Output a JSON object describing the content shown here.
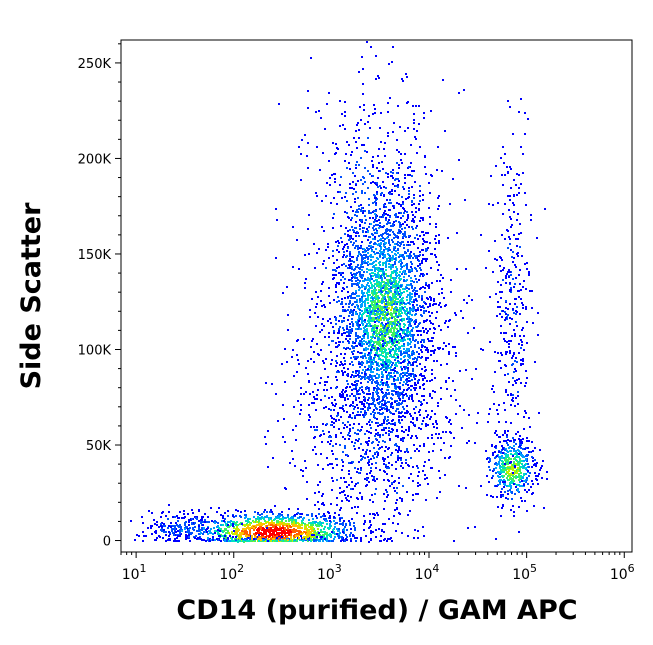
{
  "chart_data": {
    "type": "scatter",
    "style": "flow-cytometry density dot plot",
    "xlabel": "CD14 (purified) / GAM APC",
    "ylabel": "Side Scatter",
    "x_scale": "log",
    "xlim": [
      7,
      1200000
    ],
    "ylim": [
      -6000,
      262000
    ],
    "x_ticks": [
      {
        "value": 10,
        "base": "10",
        "exp": "1"
      },
      {
        "value": 100,
        "base": "10",
        "exp": "2"
      },
      {
        "value": 1000,
        "base": "10",
        "exp": "3"
      },
      {
        "value": 10000,
        "base": "10",
        "exp": "4"
      },
      {
        "value": 100000,
        "base": "10",
        "exp": "5"
      },
      {
        "value": 1000000,
        "base": "10",
        "exp": "6"
      }
    ],
    "y_ticks": [
      {
        "value": 0,
        "label": "0"
      },
      {
        "value": 50000,
        "label": "50K"
      },
      {
        "value": 100000,
        "label": "100K"
      },
      {
        "value": 150000,
        "label": "150K"
      },
      {
        "value": 200000,
        "label": "200K"
      },
      {
        "value": 250000,
        "label": "250K"
      }
    ],
    "grid": false,
    "legend": "none",
    "density_colors": [
      "#0000ff",
      "#0050ff",
      "#00a0ff",
      "#00e0c0",
      "#40f060",
      "#c0f000",
      "#ffc000",
      "#ff6000",
      "#ff0000"
    ],
    "populations": [
      {
        "x_center": 250,
        "y_center": 5000,
        "x_log_spread": 0.42,
        "y_spread": 5000,
        "points": 1300,
        "peak": 1.0
      },
      {
        "x_center": 3500,
        "y_center": 118000,
        "x_log_spread": 0.22,
        "y_spread": 28000,
        "points": 2300,
        "peak": 0.55
      },
      {
        "x_center": 3000,
        "y_center": 130000,
        "x_log_spread": 0.35,
        "y_spread": 50000,
        "points": 1400,
        "peak": 0.25
      },
      {
        "x_center": 2500,
        "y_center": 60000,
        "x_log_spread": 0.45,
        "y_spread": 30000,
        "points": 700,
        "peak": 0.15
      },
      {
        "x_center": 70000,
        "y_center": 38000,
        "x_log_spread": 0.12,
        "y_spread": 8000,
        "points": 450,
        "peak": 0.6
      },
      {
        "x_center": 70000,
        "y_center": 120000,
        "x_log_spread": 0.1,
        "y_spread": 45000,
        "points": 350,
        "peak": 0.1
      },
      {
        "x_center": 30,
        "y_center": 7000,
        "x_log_spread": 0.2,
        "y_spread": 4000,
        "points": 200,
        "peak": 0.2
      }
    ]
  }
}
